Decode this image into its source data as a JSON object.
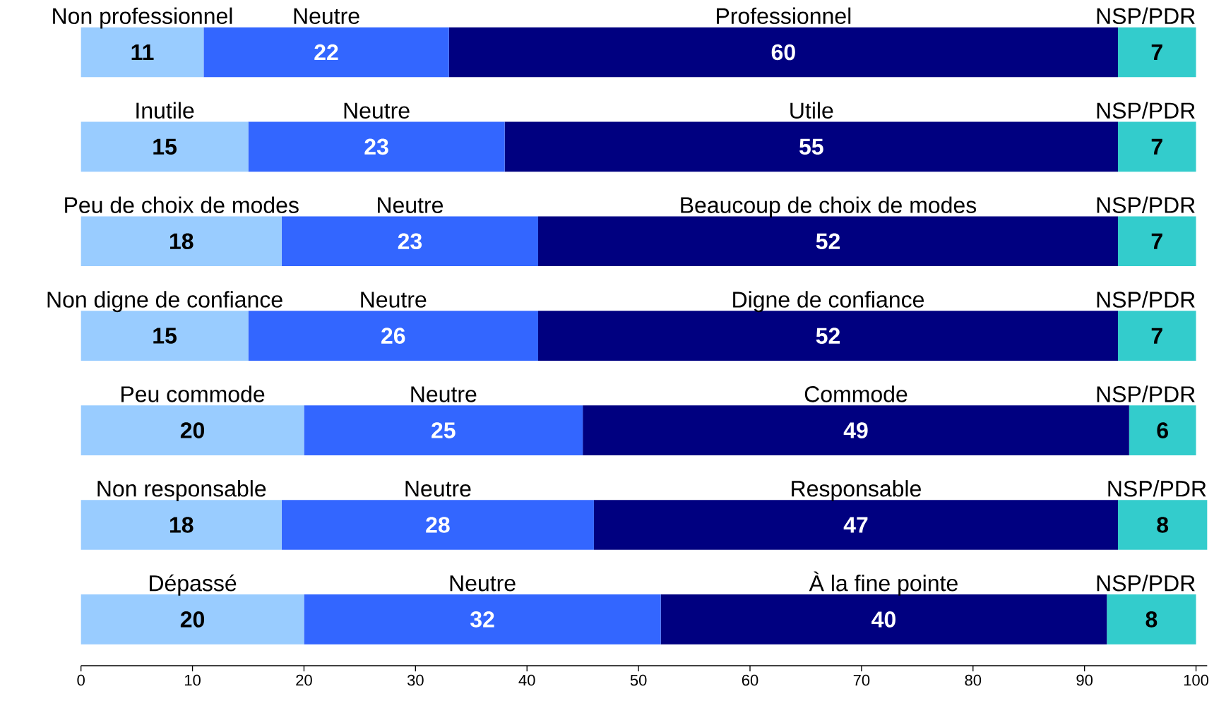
{
  "chart_data": {
    "type": "bar",
    "orientation": "horizontal",
    "stacked": true,
    "data_labels": true,
    "grid": false,
    "categories": [
      null,
      null,
      null,
      null,
      null,
      null,
      null
    ],
    "series": [
      {
        "color": "#99ccff",
        "values": [
          11,
          15,
          18,
          15,
          20,
          18,
          20
        ]
      },
      {
        "color": "#3366ff",
        "values": [
          22,
          23,
          23,
          26,
          25,
          28,
          32
        ]
      },
      {
        "color": "#000080",
        "values": [
          60,
          55,
          52,
          52,
          49,
          47,
          40
        ]
      },
      {
        "color": "#33cccc",
        "values": [
          7,
          7,
          7,
          7,
          6,
          8,
          8
        ]
      }
    ],
    "xlim": [
      0,
      101
    ],
    "xticks": [
      0,
      10,
      20,
      30,
      40,
      50,
      60,
      70,
      80,
      90,
      100
    ],
    "annotations": [
      "Non professionnel",
      "Neutre",
      "Professionnel",
      "NSP/PDR",
      "Inutile",
      "Neutre",
      "Utile",
      "NSP/PDR",
      "Peu de choix de modes",
      "Neutre",
      "Beaucoup de choix de modes",
      "NSP/PDR",
      "Non digne de confiance",
      "Neutre",
      "Digne de confiance",
      "NSP/PDR",
      "Peu commode",
      "Neutre",
      "Commode",
      "NSP/PDR",
      "Non responsable",
      "Neutre",
      "Responsable",
      "NSP/PDR",
      "Dépassé",
      "Neutre",
      "À la fine pointe",
      "NSP/PDR"
    ]
  }
}
